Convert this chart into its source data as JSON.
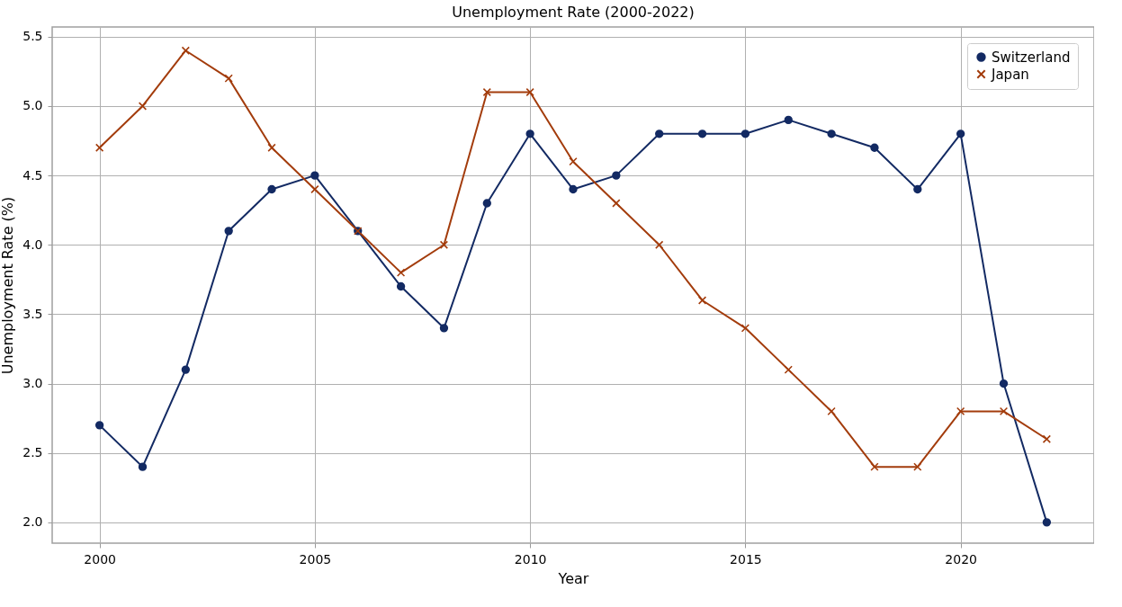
{
  "chart_data": {
    "type": "line",
    "title": "Unemployment Rate (2000-2022)",
    "xlabel": "Year",
    "ylabel": "Unemployment Rate (%)",
    "x": [
      2000,
      2001,
      2002,
      2003,
      2004,
      2005,
      2006,
      2007,
      2008,
      2009,
      2010,
      2011,
      2012,
      2013,
      2014,
      2015,
      2016,
      2017,
      2018,
      2019,
      2020,
      2021,
      2022
    ],
    "series": [
      {
        "name": "Switzerland",
        "color": "#132a63",
        "marker": "circle",
        "values": [
          2.7,
          2.4,
          3.1,
          4.1,
          4.4,
          4.5,
          4.1,
          3.7,
          3.4,
          4.3,
          4.8,
          4.4,
          4.5,
          4.8,
          4.8,
          4.8,
          4.9,
          4.8,
          4.7,
          4.4,
          4.8,
          3.0,
          2.0
        ]
      },
      {
        "name": "Japan",
        "color": "#a33c0c",
        "marker": "cross",
        "values": [
          4.7,
          5.0,
          5.4,
          5.2,
          4.7,
          4.4,
          4.1,
          3.8,
          4.0,
          5.1,
          5.1,
          4.6,
          4.3,
          4.0,
          3.6,
          3.4,
          3.1,
          2.8,
          2.4,
          2.4,
          2.8,
          2.8,
          2.6
        ]
      }
    ],
    "xlim": [
      1998.9,
      2023.1
    ],
    "xticks": [
      2000,
      2005,
      2010,
      2015,
      2020
    ],
    "ylim": [
      1.85,
      5.57
    ],
    "yticks": [
      {
        "value": 2,
        "label": "2.0"
      },
      {
        "value": 2.5,
        "label": "2.5"
      },
      {
        "value": 3,
        "label": "3.0"
      },
      {
        "value": 3.5,
        "label": "3.5"
      },
      {
        "value": 4,
        "label": "4.0"
      },
      {
        "value": 4.5,
        "label": "4.5"
      },
      {
        "value": 5,
        "label": "5.0"
      },
      {
        "value": 5.5,
        "label": "5.5"
      }
    ],
    "grid": true,
    "legend": "top right",
    "line_style": "solid"
  }
}
